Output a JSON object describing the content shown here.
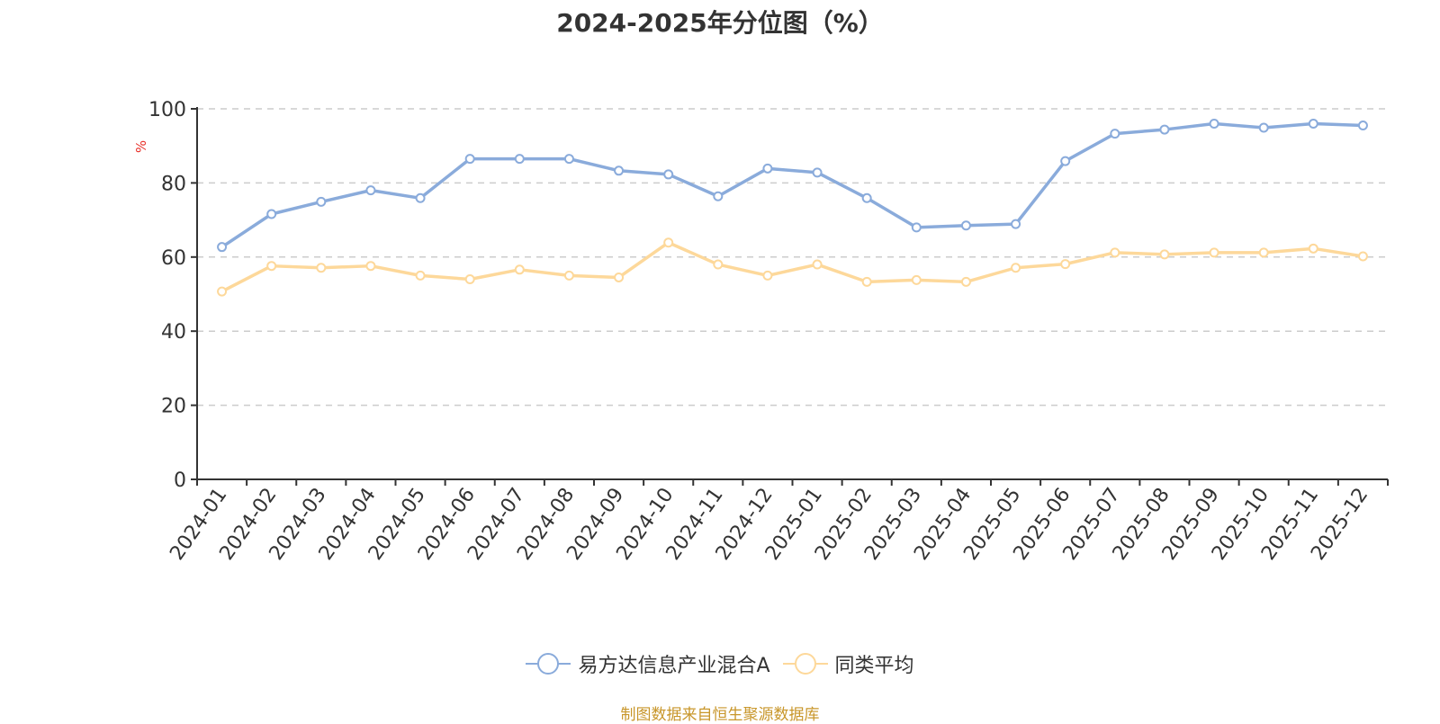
{
  "title": "2024-2025年分位图（%）",
  "footer": {
    "source": "制图数据来自恒生聚源数据库",
    "color": "#c8962a"
  },
  "legend": [
    {
      "label": "易方达信息产业混合A",
      "color": "#8aabdb"
    },
    {
      "label": "同类平均",
      "color": "#fdd89a"
    }
  ],
  "chart_data": {
    "type": "line",
    "title": "2024-2025年分位图（%）",
    "xlabel": "",
    "ylabel": "%",
    "ylim": [
      0,
      100
    ],
    "yticks": [
      0,
      20,
      40,
      60,
      80,
      100
    ],
    "grid": "horizontal dashed",
    "legend_position": "bottom",
    "categories": [
      "2024-01",
      "2024-02",
      "2024-03",
      "2024-04",
      "2024-05",
      "2024-06",
      "2024-07",
      "2024-08",
      "2024-09",
      "2024-10",
      "2024-11",
      "2024-12",
      "2025-01",
      "2025-02",
      "2025-03",
      "2025-04",
      "2025-05",
      "2025-06",
      "2025-07",
      "2025-08",
      "2025-09",
      "2025-10",
      "2025-11",
      "2025-12"
    ],
    "series": [
      {
        "name": "易方达信息产业混合A",
        "color": "#8aabdb",
        "values": [
          62.7,
          71.6,
          74.9,
          78.0,
          75.9,
          86.5,
          86.5,
          86.5,
          83.3,
          82.3,
          76.4,
          83.9,
          82.8,
          75.9,
          68.0,
          68.5,
          68.9,
          85.9,
          93.3,
          94.4,
          96.0,
          94.9,
          96.0,
          95.5
        ]
      },
      {
        "name": "同类平均",
        "color": "#fdd89a",
        "values": [
          50.7,
          57.6,
          57.1,
          57.6,
          55.0,
          54.0,
          56.6,
          55.0,
          54.5,
          63.9,
          58.0,
          55.0,
          58.0,
          53.3,
          53.8,
          53.3,
          57.1,
          58.1,
          61.2,
          60.7,
          61.2,
          61.2,
          62.3,
          60.2
        ]
      }
    ]
  }
}
